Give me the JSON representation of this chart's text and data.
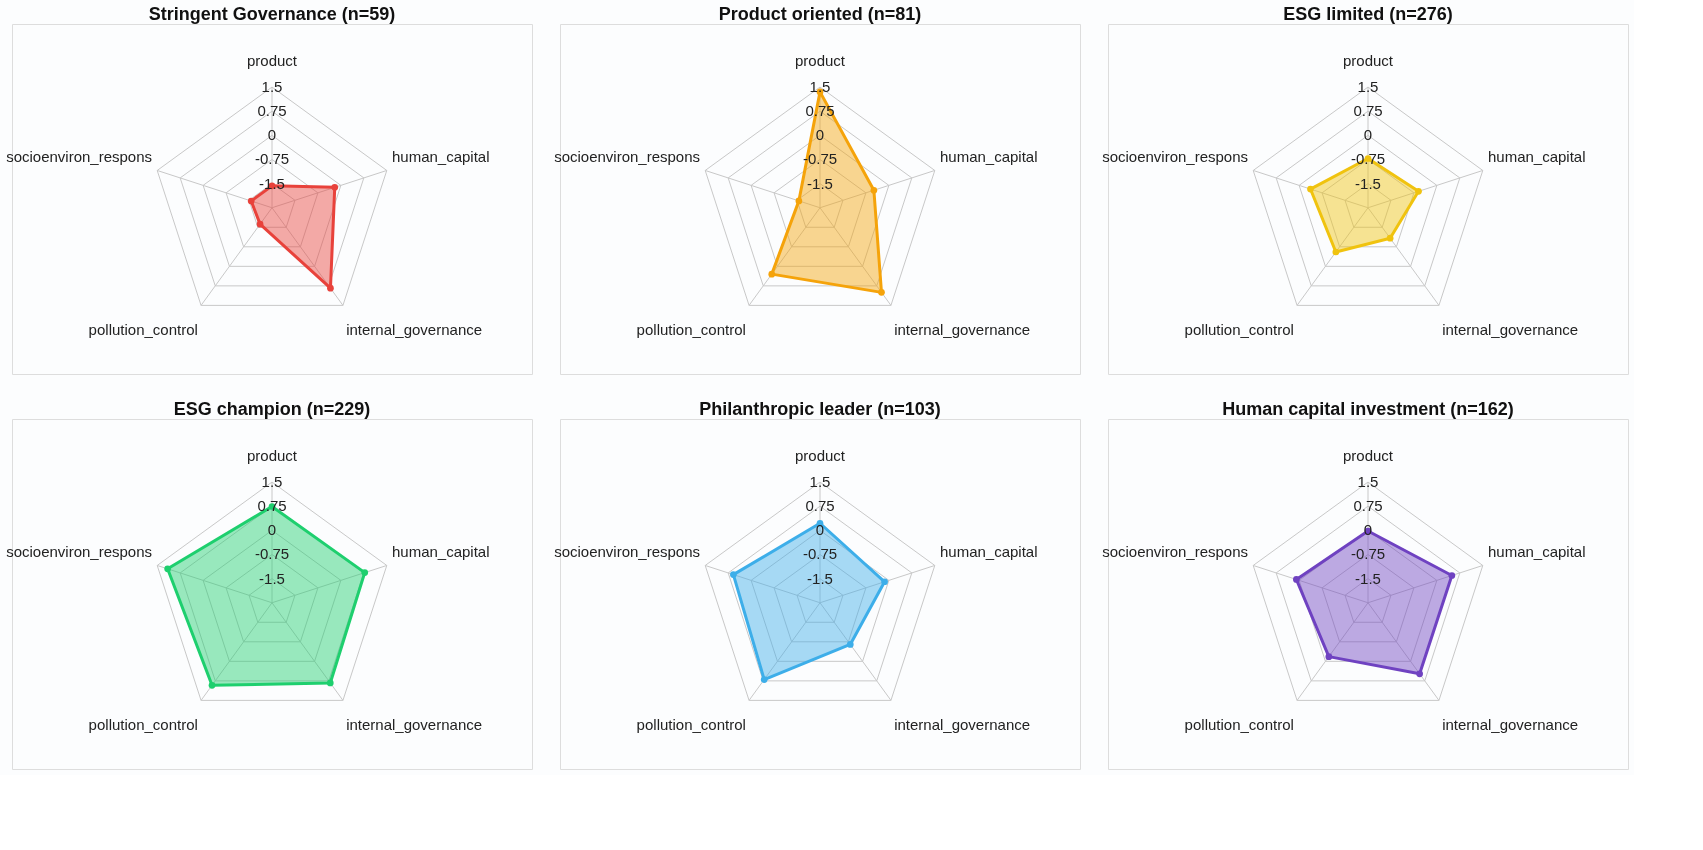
{
  "chart_data": [
    {
      "type": "radar",
      "title": "Stringent Governance (n=59)",
      "categories": [
        "product",
        "human_capital",
        "internal_governance",
        "pollution_control",
        "socioenviron_respons"
      ],
      "ylim": [
        -2.25,
        1.5
      ],
      "yticks": [
        -1.5,
        -0.75,
        0,
        0.75,
        1.5
      ],
      "grid": true,
      "marker": "circle",
      "series": [
        {
          "color": "#e8423b",
          "values": [
            -1.57,
            -0.2,
            0.84,
            -1.62,
            -1.57
          ]
        }
      ]
    },
    {
      "type": "radar",
      "title": "Product oriented (n=81)",
      "categories": [
        "product",
        "human_capital",
        "internal_governance",
        "pollution_control",
        "socioenviron_respons"
      ],
      "ylim": [
        -2.25,
        1.5
      ],
      "yticks": [
        -1.5,
        -0.75,
        0,
        0.75,
        1.5
      ],
      "grid": true,
      "marker": "circle",
      "series": [
        {
          "color": "#f5a30a",
          "values": [
            1.35,
            -0.49,
            1.0,
            0.3,
            -1.56
          ]
        }
      ]
    },
    {
      "type": "radar",
      "title": "ESG limited (n=276)",
      "categories": [
        "product",
        "human_capital",
        "internal_governance",
        "pollution_control",
        "socioenviron_respons"
      ],
      "ylim": [
        -2.25,
        1.5
      ],
      "yticks": [
        -1.5,
        -0.75,
        0,
        0.75,
        1.5
      ],
      "grid": true,
      "marker": "circle",
      "series": [
        {
          "color": "#f0c30f",
          "values": [
            -0.72,
            -0.6,
            -1.08,
            -0.55,
            -0.37
          ]
        }
      ]
    },
    {
      "type": "radar",
      "title": "ESG champion (n=229)",
      "categories": [
        "product",
        "human_capital",
        "internal_governance",
        "pollution_control",
        "socioenviron_respons"
      ],
      "ylim": [
        -2.25,
        1.5
      ],
      "yticks": [
        -1.5,
        -0.75,
        0,
        0.75,
        1.5
      ],
      "grid": true,
      "marker": "circle",
      "series": [
        {
          "color": "#1ecf6e",
          "values": [
            0.74,
            0.78,
            0.83,
            0.92,
            1.16
          ]
        }
      ]
    },
    {
      "type": "radar",
      "title": "Philanthropic leader (n=103)",
      "categories": [
        "product",
        "human_capital",
        "internal_governance",
        "pollution_control",
        "socioenviron_respons"
      ],
      "ylim": [
        -2.25,
        1.5
      ],
      "yticks": [
        -1.5,
        -0.75,
        0,
        0.75,
        1.5
      ],
      "grid": true,
      "marker": "circle",
      "series": [
        {
          "color": "#3daee9",
          "values": [
            0.22,
            -0.14,
            -0.65,
            0.7,
            0.58
          ]
        }
      ]
    },
    {
      "type": "radar",
      "title": "Human capital investment (n=162)",
      "categories": [
        "product",
        "human_capital",
        "internal_governance",
        "pollution_control",
        "socioenviron_respons"
      ],
      "ylim": [
        -2.25,
        1.5
      ],
      "yticks": [
        -1.5,
        -0.75,
        0,
        0.75,
        1.5
      ],
      "grid": true,
      "marker": "circle",
      "series": [
        {
          "color": "#6f42c1",
          "values": [
            -0.02,
            0.49,
            0.48,
            -0.18,
            0.09
          ]
        }
      ]
    }
  ]
}
